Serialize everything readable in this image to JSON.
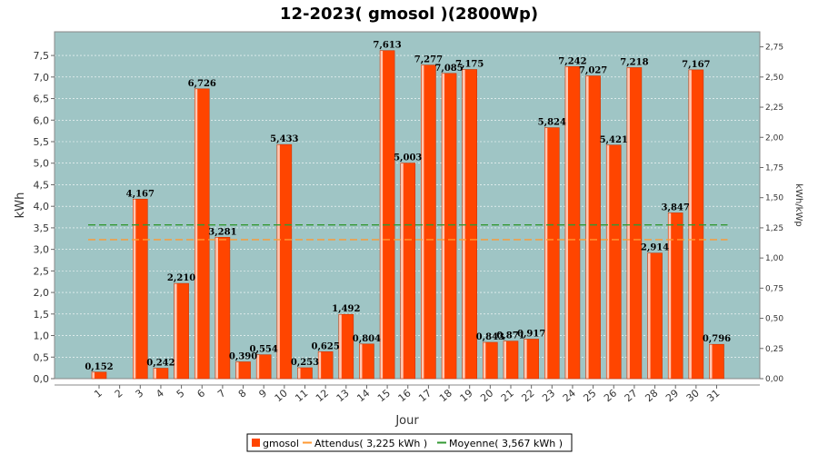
{
  "chart_data": {
    "type": "bar",
    "title": "12-2023( gmosol )(2800Wp)",
    "xlabel": "Jour",
    "ylabel": "kWh",
    "ylabel_right": "kWh/kWp",
    "ylim": [
      0,
      8.05
    ],
    "yticks": [
      "0,0",
      "0,5",
      "1,0",
      "1,5",
      "2,0",
      "2,5",
      "3,0",
      "3,5",
      "4,0",
      "4,5",
      "5,0",
      "5,5",
      "6,0",
      "6,5",
      "7,0",
      "7,5"
    ],
    "ylim_right": [
      0,
      2.875
    ],
    "yticks_right": [
      "0,00",
      "0,25",
      "0,50",
      "0,75",
      "1,00",
      "1,25",
      "1,50",
      "1,75",
      "2,00",
      "2,25",
      "2,50",
      "2,75"
    ],
    "categories": [
      "1",
      "2",
      "3",
      "4",
      "5",
      "6",
      "7",
      "8",
      "9",
      "10",
      "11",
      "12",
      "13",
      "14",
      "15",
      "16",
      "17",
      "18",
      "19",
      "20",
      "21",
      "22",
      "23",
      "24",
      "25",
      "26",
      "27",
      "28",
      "29",
      "30",
      "31"
    ],
    "series": [
      {
        "name": "gmosol",
        "values": [
          0.152,
          0,
          4.167,
          0.242,
          2.21,
          6.726,
          3.281,
          0.39,
          0.554,
          5.433,
          0.253,
          0.625,
          1.492,
          0.804,
          7.613,
          5.003,
          7.277,
          7.085,
          7.175,
          0.843,
          0.871,
          0.917,
          5.824,
          7.242,
          7.027,
          5.421,
          7.218,
          2.914,
          3.847,
          7.167,
          0.796
        ],
        "labels": [
          "0,152",
          "",
          "4,167",
          "0,242",
          "2,210",
          "6,726",
          "3,281",
          "0,390",
          "0,554",
          "5,433",
          "0,253",
          "0,625",
          "1,492",
          "0,804",
          "7,613",
          "5,003",
          "7,277",
          "7,085",
          "7,175",
          "0,843",
          "0,871",
          "0,917",
          "5,824",
          "7,242",
          "7,027",
          "5,421",
          "7,218",
          "2,914",
          "3,847",
          "7,167",
          "0,796"
        ]
      }
    ],
    "reference_lines": [
      {
        "name": "Attendus( 3,225 kWh )",
        "value": 3.225
      },
      {
        "name": "Moyenne( 3,567 kWh )",
        "value": 3.567
      }
    ],
    "legend_position": "bottom",
    "grid": true,
    "colors": {
      "plot_bg": "#9FC5C5",
      "bar": "#FF4500",
      "bar_highlight": "#FFC8B4",
      "attendus": "#FF9933",
      "moyenne": "#339933",
      "grid": "#ffffff"
    }
  }
}
